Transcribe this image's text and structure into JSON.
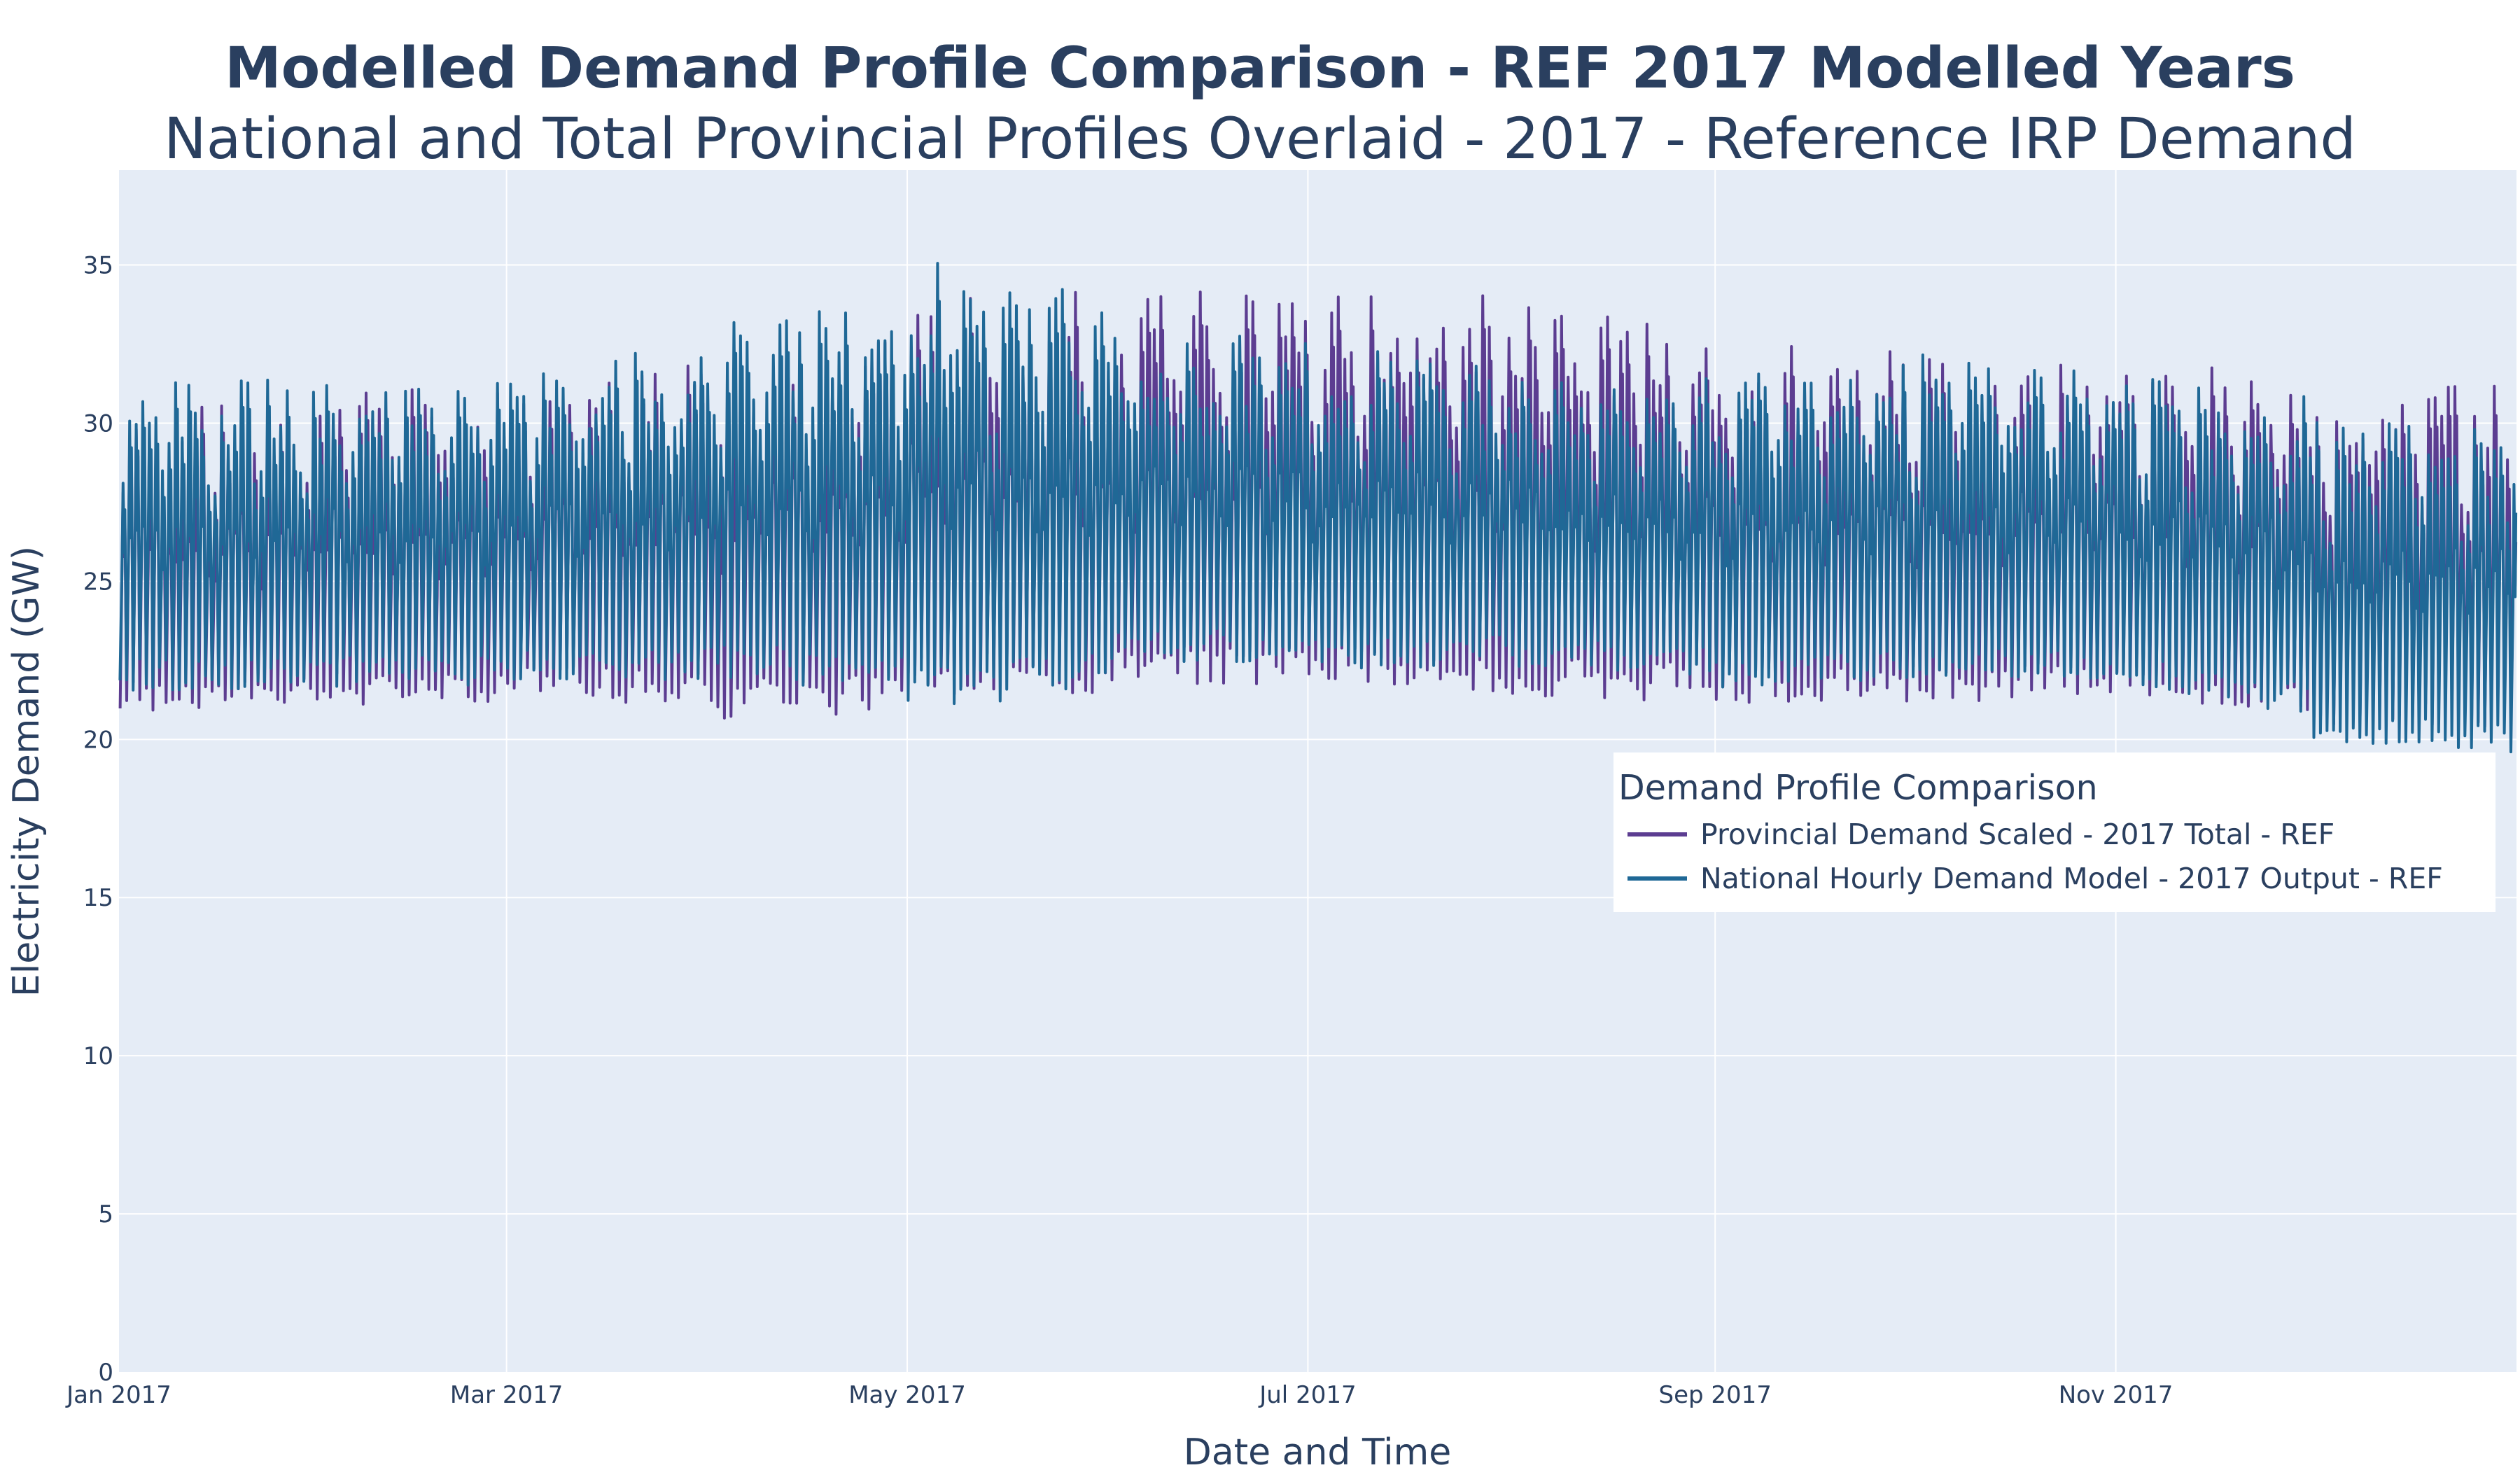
{
  "chart_data": {
    "type": "line",
    "title": "Modelled Demand Profile Comparison - REF 2017 Modelled Years",
    "subtitle": "National and Total Provincial Profiles Overlaid - 2017 - Reference IRP Demand",
    "xlabel": "Date and Time",
    "ylabel": "Electricity Demand (GW)",
    "xlim": [
      "2017-01-01",
      "2018-01-01"
    ],
    "ylim": [
      0,
      38
    ],
    "x_ticks": [
      {
        "date": "2017-01-01",
        "label": "Jan 2017"
      },
      {
        "date": "2017-03-01",
        "label": "Mar 2017"
      },
      {
        "date": "2017-05-01",
        "label": "May 2017"
      },
      {
        "date": "2017-07-01",
        "label": "Jul 2017"
      },
      {
        "date": "2017-09-01",
        "label": "Sep 2017"
      },
      {
        "date": "2017-11-01",
        "label": "Nov 2017"
      }
    ],
    "y_ticks": [
      0,
      5,
      10,
      15,
      20,
      25,
      30,
      35
    ],
    "grid": true,
    "background": "#e5ecf6",
    "legend": {
      "title": "Demand Profile Comparison",
      "placement": "lower-right inside plot"
    },
    "series": [
      {
        "name": "Provincial Demand Scaled - 2017 Total - REF",
        "color": "#5c3d91",
        "monthly_envelope": [
          {
            "month": "2017-01",
            "min": 20.2,
            "max": 30.8
          },
          {
            "month": "2017-02",
            "min": 20.4,
            "max": 31.3
          },
          {
            "month": "2017-03",
            "min": 20.7,
            "max": 31.4
          },
          {
            "month": "2017-04",
            "min": 19.8,
            "max": 32.5
          },
          {
            "month": "2017-05",
            "min": 20.4,
            "max": 34.5
          },
          {
            "month": "2017-06",
            "min": 20.9,
            "max": 34.2
          },
          {
            "month": "2017-07",
            "min": 20.8,
            "max": 34.3
          },
          {
            "month": "2017-08",
            "min": 20.5,
            "max": 33.7
          },
          {
            "month": "2017-09",
            "min": 20.4,
            "max": 32.5
          },
          {
            "month": "2017-10",
            "min": 20.5,
            "max": 32.1
          },
          {
            "month": "2017-11",
            "min": 20.7,
            "max": 32.0
          },
          {
            "month": "2017-12",
            "min": 19.6,
            "max": 31.2
          }
        ]
      },
      {
        "name": "National Hourly Demand Model - 2017 Output - REF",
        "color": "#1f6896",
        "monthly_envelope": [
          {
            "month": "2017-01",
            "min": 20.9,
            "max": 31.4
          },
          {
            "month": "2017-02",
            "min": 21.0,
            "max": 31.4
          },
          {
            "month": "2017-03",
            "min": 21.2,
            "max": 31.8
          },
          {
            "month": "2017-04",
            "min": 21.2,
            "max": 33.2
          },
          {
            "month": "2017-05",
            "min": 19.9,
            "max": 35.2
          },
          {
            "month": "2017-06",
            "min": 21.8,
            "max": 33.0
          },
          {
            "month": "2017-07",
            "min": 21.6,
            "max": 32.5
          },
          {
            "month": "2017-08",
            "min": 21.7,
            "max": 31.5
          },
          {
            "month": "2017-09",
            "min": 21.0,
            "max": 31.6
          },
          {
            "month": "2017-10",
            "min": 21.2,
            "max": 32.2
          },
          {
            "month": "2017-11",
            "min": 21.2,
            "max": 31.5
          },
          {
            "month": "2017-12",
            "min": 18.9,
            "max": 30.1
          }
        ]
      }
    ]
  }
}
